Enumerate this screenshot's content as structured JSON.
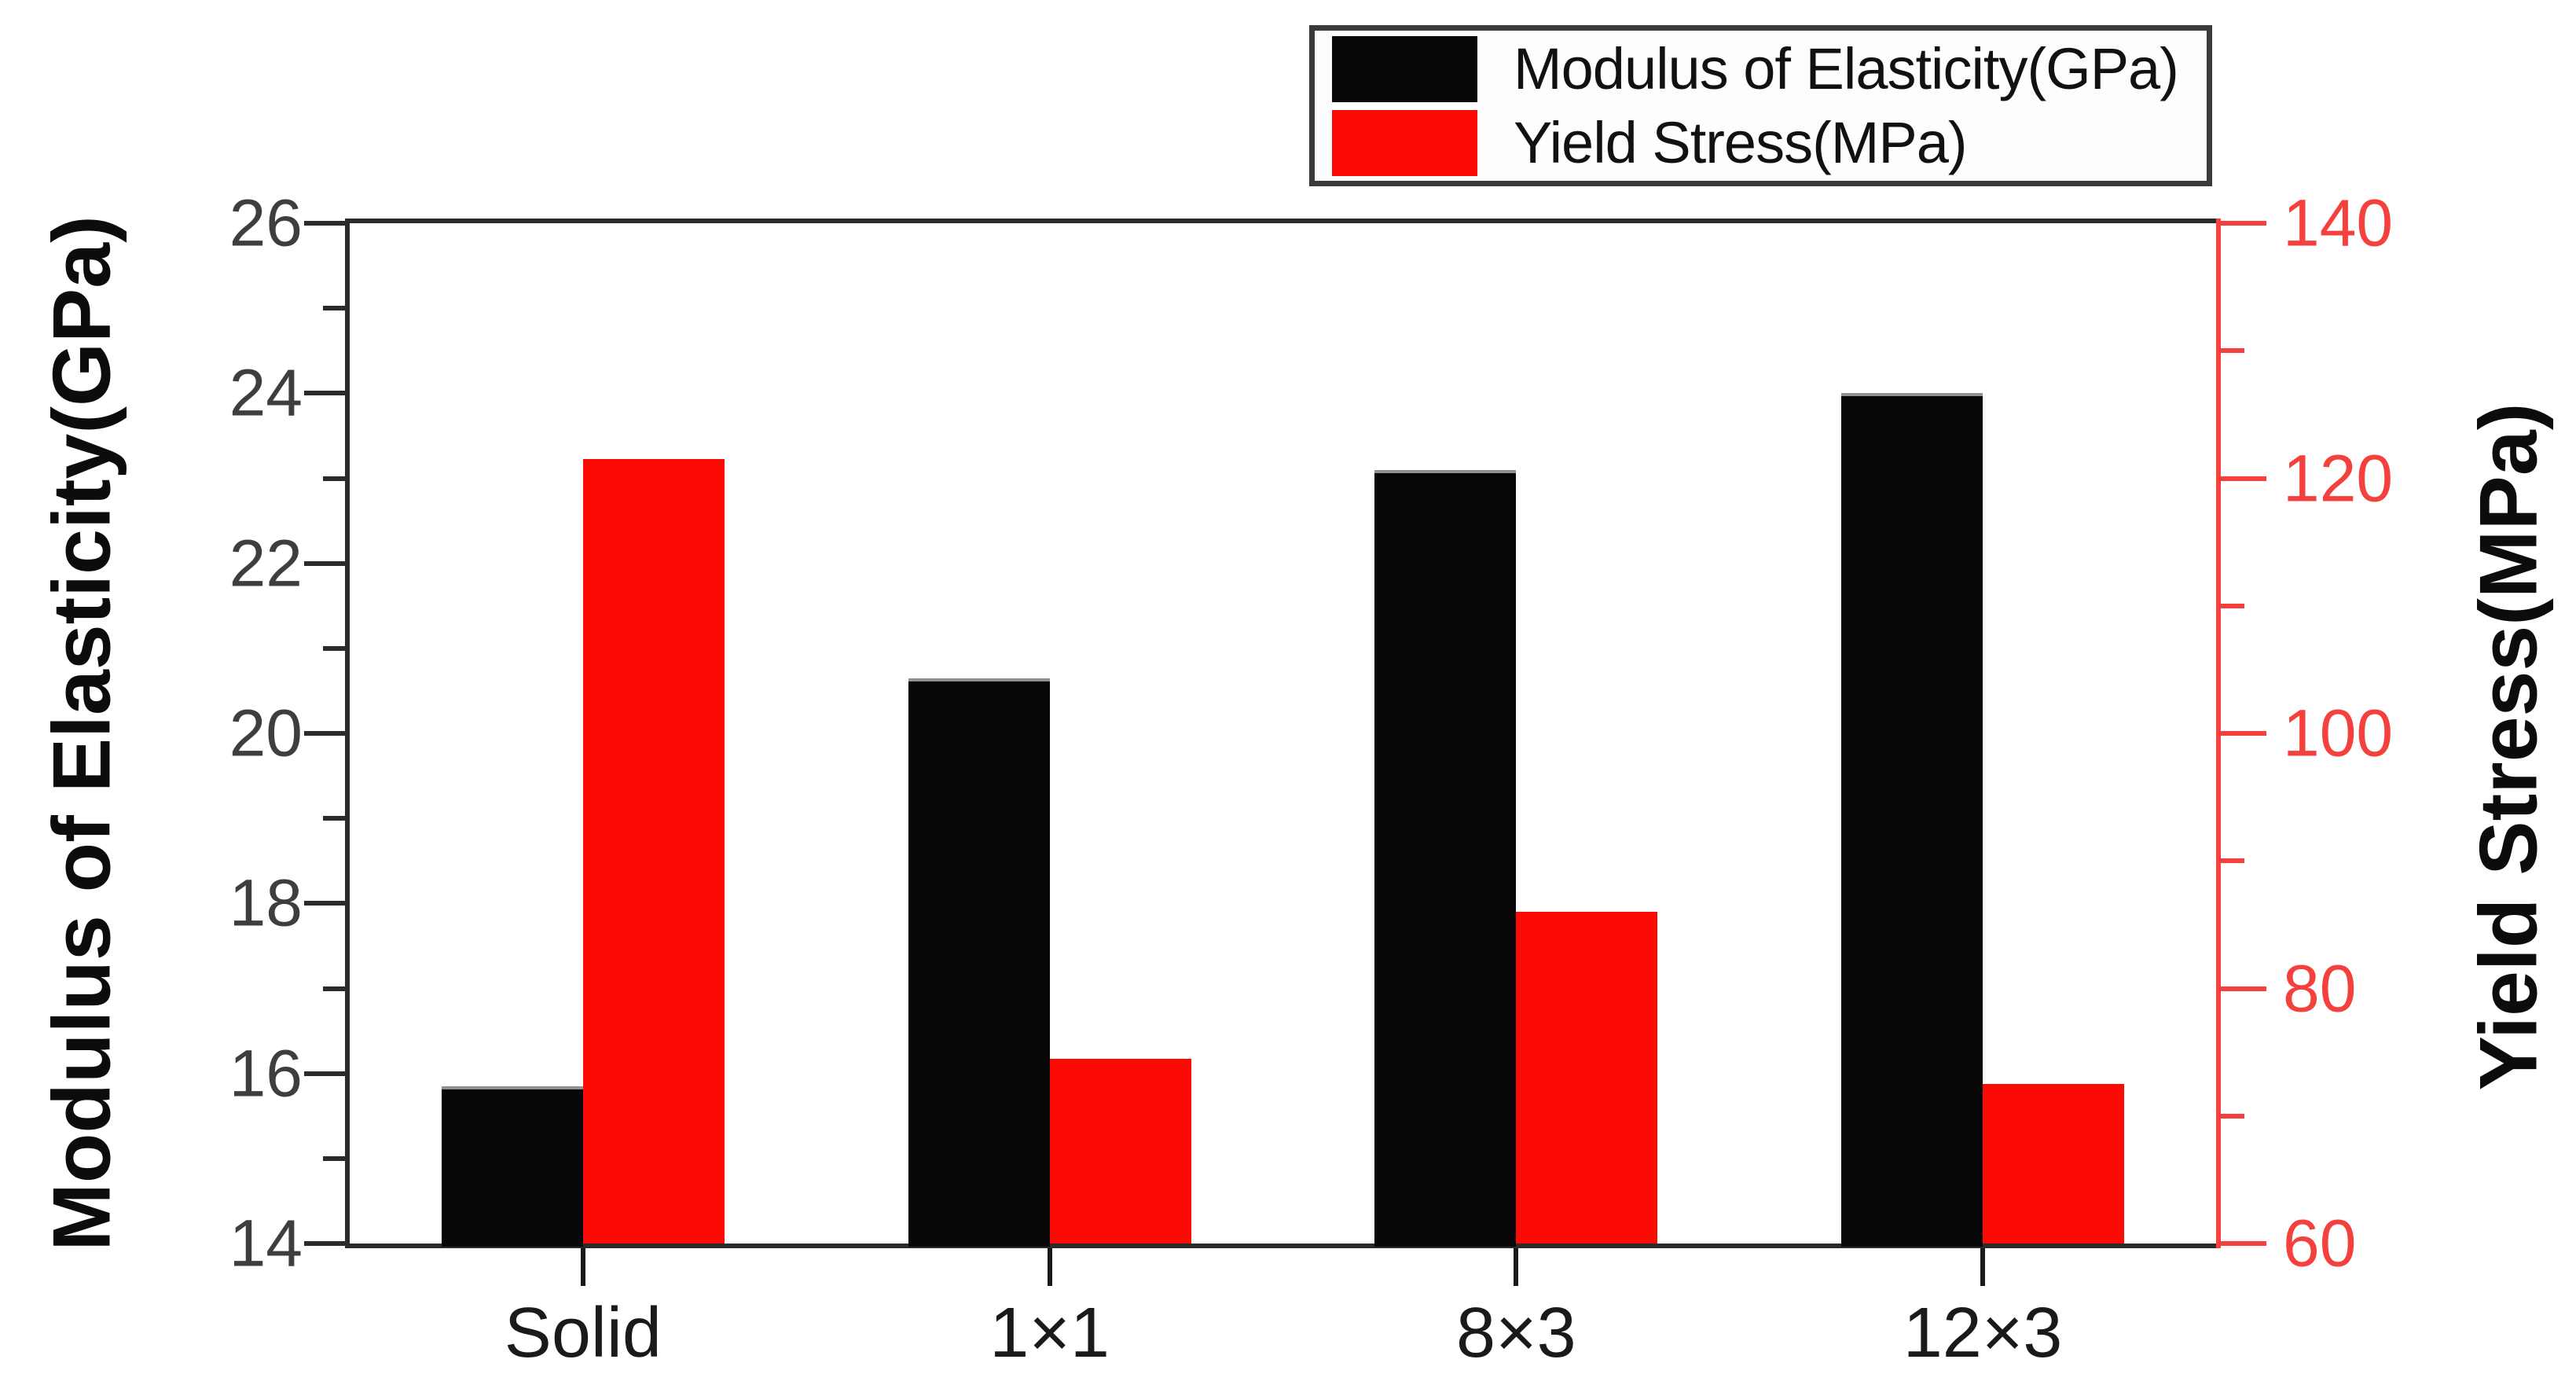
{
  "chart_data": {
    "type": "bar",
    "title": "",
    "categories": [
      "Solid",
      "1×1",
      "8×3",
      "12×3"
    ],
    "series": [
      {
        "name": "Modulus of Elasticity(GPa)",
        "axis": "left",
        "color": "#070707",
        "values": [
          15.85,
          20.65,
          23.1,
          24.0
        ]
      },
      {
        "name": "Yield Stress(MPa)",
        "axis": "right",
        "color": "#fb0a06",
        "values": [
          121.5,
          74.5,
          86,
          72.5
        ]
      }
    ],
    "left_axis": {
      "label": "Modulus of Elasticity(GPa)",
      "min": 14,
      "max": 26,
      "major_step": 2,
      "minor_step": 1,
      "tick_labels": [
        "14",
        "16",
        "18",
        "20",
        "22",
        "24",
        "26"
      ],
      "text_color": "#3e3e3e",
      "line_color": "#2b2b2b"
    },
    "right_axis": {
      "label": "Yield Stress(MPa)",
      "min": 60,
      "max": 140,
      "major_step": 20,
      "minor_step": 10,
      "tick_labels": [
        "60",
        "80",
        "100",
        "120",
        "140"
      ],
      "text_color": "#f5413d",
      "line_color": "#f5413d"
    },
    "x_axis": {
      "tick_labels": [
        "Solid",
        "1×1",
        "8×3",
        "12×3"
      ],
      "text_color": "#1a1a1a"
    },
    "legend": {
      "position": "top-right",
      "entries": [
        {
          "swatch_color": "#070707",
          "label": "Modulus of Elasticity(GPa)"
        },
        {
          "swatch_color": "#fb0a06",
          "label": "Yield Stress(MPa)"
        }
      ]
    },
    "grid": false,
    "background": "#ffffff"
  }
}
